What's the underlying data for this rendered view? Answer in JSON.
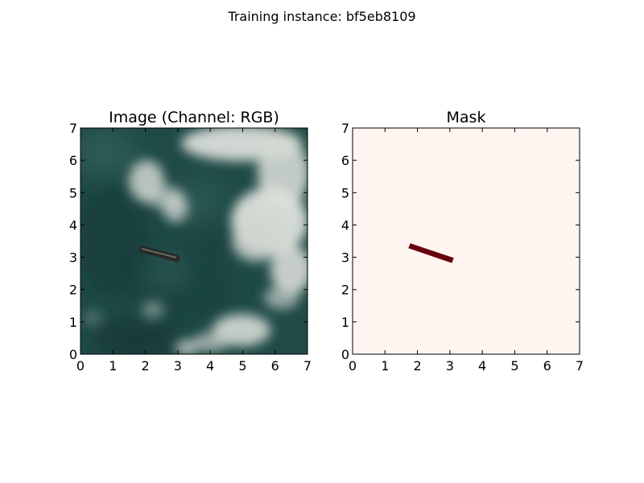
{
  "figure": {
    "suptitle": "Training instance: bf5eb8109"
  },
  "chart_data": [
    {
      "type": "heatmap",
      "title": "Image (Channel: RGB)",
      "xlabel": "",
      "ylabel": "",
      "xlim": [
        0,
        7
      ],
      "ylim": [
        0,
        7
      ],
      "xticks": [
        "0",
        "1",
        "2",
        "3",
        "4",
        "5",
        "6",
        "7"
      ],
      "yticks": [
        "0",
        "1",
        "2",
        "3",
        "4",
        "5",
        "6",
        "7"
      ],
      "grid": false,
      "content": "satellite RGB image: dark teal sea with white clouds, a ship near (1.8–3.0, 2.9–3.3)",
      "colors": {
        "sea": "#1f4a47",
        "sea_dark": "#163a3a",
        "cloud": "#d9ddd8",
        "ship": "#2a2a26"
      }
    },
    {
      "type": "heatmap",
      "title": "Mask",
      "xlabel": "",
      "ylabel": "",
      "xlim": [
        0,
        7
      ],
      "ylim": [
        0,
        7
      ],
      "xticks": [
        "0",
        "1",
        "2",
        "3",
        "4",
        "5",
        "6",
        "7"
      ],
      "yticks": [
        "0",
        "1",
        "2",
        "3",
        "4",
        "5",
        "6",
        "7"
      ],
      "grid": false,
      "colormap": "Reds",
      "background_value": 0,
      "mask_value": 1,
      "mask_polygon": [
        [
          1.72,
          3.28
        ],
        [
          1.78,
          3.43
        ],
        [
          3.12,
          2.98
        ],
        [
          3.06,
          2.82
        ]
      ],
      "colors": {
        "background": "#fff5f0",
        "mask": "#67000d"
      }
    }
  ]
}
